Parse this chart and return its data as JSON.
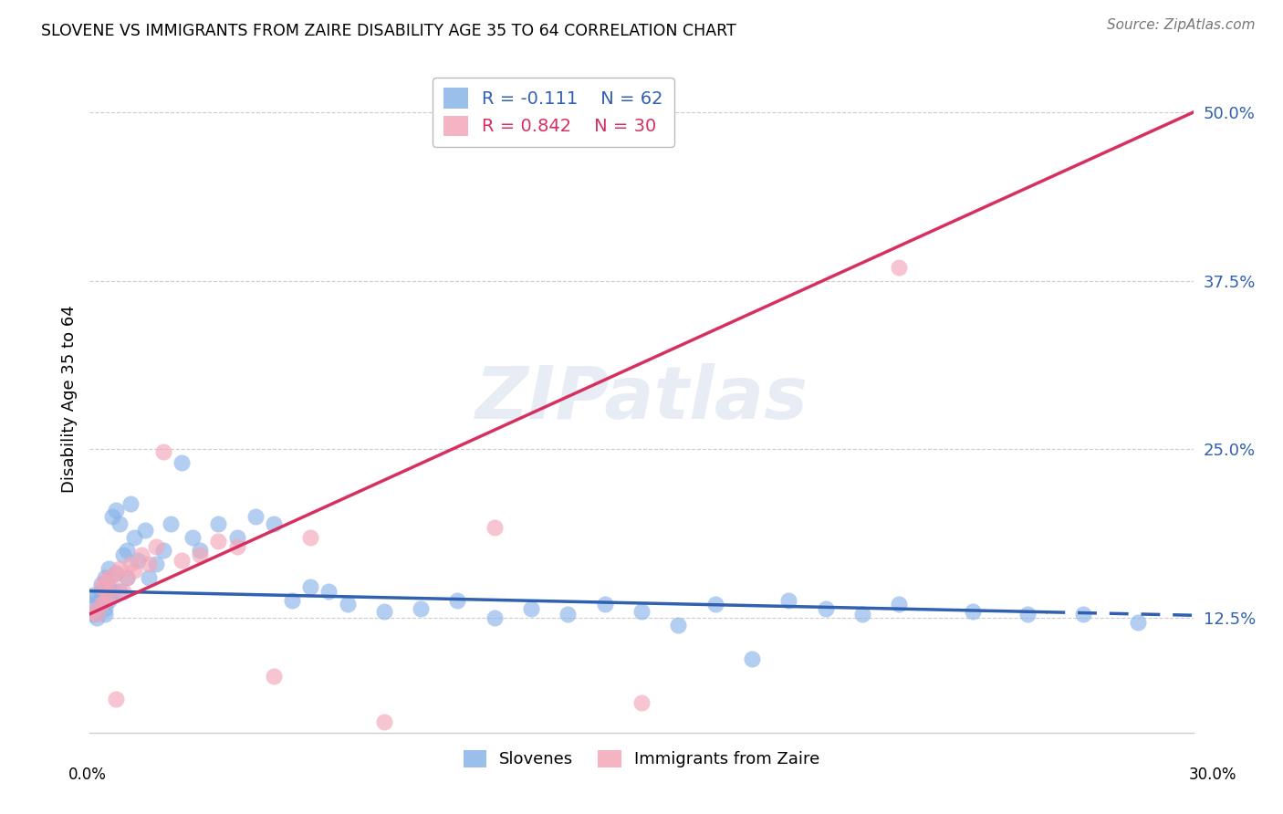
{
  "title": "SLOVENE VS IMMIGRANTS FROM ZAIRE DISABILITY AGE 35 TO 64 CORRELATION CHART",
  "source": "Source: ZipAtlas.com",
  "ylabel": "Disability Age 35 to 64",
  "ytick_vals": [
    0.125,
    0.25,
    0.375,
    0.5
  ],
  "ytick_labels": [
    "12.5%",
    "25.0%",
    "37.5%",
    "50.0%"
  ],
  "xmin": 0.0,
  "xmax": 0.3,
  "ymin": 0.04,
  "ymax": 0.535,
  "blue_color": "#8ab4e8",
  "pink_color": "#f4a7b9",
  "blue_line_color": "#3060b0",
  "pink_line_color": "#d63060",
  "blue_R": -0.111,
  "blue_N": 62,
  "pink_R": 0.842,
  "pink_N": 30,
  "slovene_x": [
    0.001,
    0.001,
    0.001,
    0.002,
    0.002,
    0.002,
    0.003,
    0.003,
    0.003,
    0.004,
    0.004,
    0.004,
    0.005,
    0.005,
    0.005,
    0.006,
    0.006,
    0.007,
    0.007,
    0.008,
    0.008,
    0.009,
    0.01,
    0.01,
    0.011,
    0.012,
    0.013,
    0.015,
    0.016,
    0.018,
    0.02,
    0.022,
    0.025,
    0.028,
    0.03,
    0.035,
    0.04,
    0.045,
    0.05,
    0.055,
    0.06,
    0.065,
    0.07,
    0.08,
    0.09,
    0.1,
    0.11,
    0.12,
    0.13,
    0.14,
    0.15,
    0.16,
    0.17,
    0.18,
    0.19,
    0.2,
    0.21,
    0.22,
    0.24,
    0.255,
    0.27,
    0.285
  ],
  "slovene_y": [
    0.135,
    0.128,
    0.142,
    0.13,
    0.14,
    0.125,
    0.145,
    0.138,
    0.15,
    0.132,
    0.155,
    0.128,
    0.148,
    0.138,
    0.162,
    0.2,
    0.145,
    0.205,
    0.158,
    0.195,
    0.145,
    0.172,
    0.175,
    0.155,
    0.21,
    0.185,
    0.168,
    0.19,
    0.155,
    0.165,
    0.175,
    0.195,
    0.24,
    0.185,
    0.175,
    0.195,
    0.185,
    0.2,
    0.195,
    0.138,
    0.148,
    0.145,
    0.135,
    0.13,
    0.132,
    0.138,
    0.125,
    0.132,
    0.128,
    0.135,
    0.13,
    0.12,
    0.135,
    0.095,
    0.138,
    0.132,
    0.128,
    0.135,
    0.13,
    0.128,
    0.128,
    0.122
  ],
  "zaire_x": [
    0.001,
    0.002,
    0.003,
    0.003,
    0.004,
    0.004,
    0.005,
    0.005,
    0.006,
    0.007,
    0.007,
    0.008,
    0.009,
    0.01,
    0.011,
    0.012,
    0.014,
    0.016,
    0.018,
    0.02,
    0.025,
    0.03,
    0.035,
    0.04,
    0.05,
    0.06,
    0.08,
    0.11,
    0.15,
    0.22
  ],
  "zaire_y": [
    0.13,
    0.128,
    0.135,
    0.148,
    0.138,
    0.152,
    0.142,
    0.155,
    0.148,
    0.158,
    0.065,
    0.162,
    0.145,
    0.155,
    0.165,
    0.16,
    0.172,
    0.165,
    0.178,
    0.248,
    0.168,
    0.172,
    0.182,
    0.178,
    0.082,
    0.185,
    0.048,
    0.192,
    0.062,
    0.385
  ]
}
